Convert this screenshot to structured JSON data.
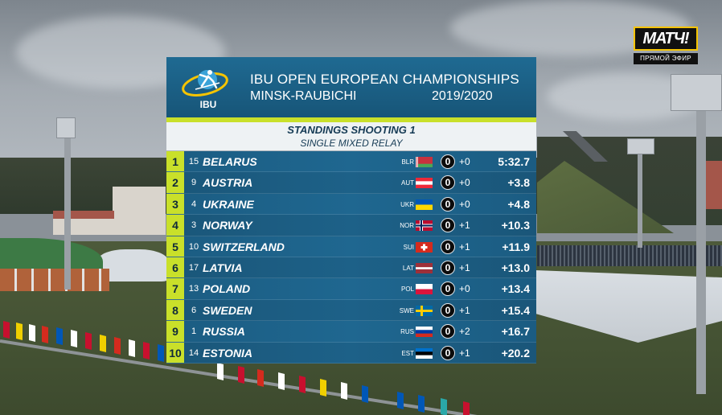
{
  "channel": {
    "logo_text": "МАТЧ!",
    "live_label": "ПРЯМОЙ ЭФИР",
    "accent_color": "#f5c400"
  },
  "header": {
    "logo_text": "IBU",
    "title_line1": "IBU OPEN EUROPEAN CHAMPIONSHIPS",
    "title_line2": "MINSK-RAUBICHI",
    "season": "2019/2020",
    "primary_color": "#1f6a92",
    "accent_color": "#c9e02a"
  },
  "subheader": {
    "title": "STANDINGS SHOOTING 1",
    "event": "SINGLE MIXED RELAY"
  },
  "standings": [
    {
      "rank": "1",
      "bib": "15",
      "team": "BELARUS",
      "nat": "BLR",
      "flag": "belarus-flag-icon",
      "misses": "0",
      "spares": "+0",
      "time": "5:32.7"
    },
    {
      "rank": "2",
      "bib": "9",
      "team": "AUSTRIA",
      "nat": "AUT",
      "flag": "austria-flag-icon",
      "misses": "0",
      "spares": "+0",
      "time": "+3.8"
    },
    {
      "rank": "3",
      "bib": "4",
      "team": "UKRAINE",
      "nat": "UKR",
      "flag": "ukraine-flag-icon",
      "misses": "0",
      "spares": "+0",
      "time": "+4.8"
    },
    {
      "rank": "4",
      "bib": "3",
      "team": "NORWAY",
      "nat": "NOR",
      "flag": "norway-flag-icon",
      "misses": "0",
      "spares": "+1",
      "time": "+10.3"
    },
    {
      "rank": "5",
      "bib": "10",
      "team": "SWITZERLAND",
      "nat": "SUI",
      "flag": "switzerland-flag-icon",
      "misses": "0",
      "spares": "+1",
      "time": "+11.9"
    },
    {
      "rank": "6",
      "bib": "17",
      "team": "LATVIA",
      "nat": "LAT",
      "flag": "latvia-flag-icon",
      "misses": "0",
      "spares": "+1",
      "time": "+13.0"
    },
    {
      "rank": "7",
      "bib": "13",
      "team": "POLAND",
      "nat": "POL",
      "flag": "poland-flag-icon",
      "misses": "0",
      "spares": "+0",
      "time": "+13.4"
    },
    {
      "rank": "8",
      "bib": "6",
      "team": "SWEDEN",
      "nat": "SWE",
      "flag": "sweden-flag-icon",
      "misses": "0",
      "spares": "+1",
      "time": "+15.4"
    },
    {
      "rank": "9",
      "bib": "1",
      "team": "RUSSIA",
      "nat": "RUS",
      "flag": "russia-flag-icon",
      "misses": "0",
      "spares": "+2",
      "time": "+16.7"
    },
    {
      "rank": "10",
      "bib": "14",
      "team": "ESTONIA",
      "nat": "EST",
      "flag": "estonia-flag-icon",
      "misses": "0",
      "spares": "+1",
      "time": "+20.2"
    }
  ]
}
